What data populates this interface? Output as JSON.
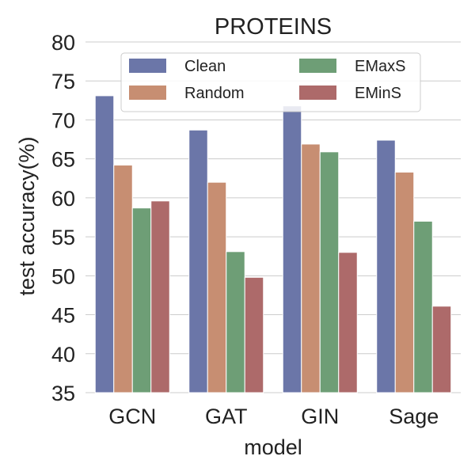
{
  "chart_data": {
    "type": "bar",
    "title": "PROTEINS",
    "xlabel": "model",
    "ylabel": "test accuracy(%)",
    "ylim": [
      35,
      80
    ],
    "yticks": [
      35,
      40,
      45,
      50,
      55,
      60,
      65,
      70,
      75,
      80
    ],
    "grid": "horizontal",
    "legend_position": "top-center",
    "categories": [
      "GCN",
      "GAT",
      "GIN",
      "Sage"
    ],
    "series": [
      {
        "name": "Clean",
        "color": "#6b76a8",
        "values": [
          73.1,
          68.7,
          71.8,
          67.4
        ]
      },
      {
        "name": "Random",
        "color": "#c78e72",
        "values": [
          64.2,
          62.0,
          66.9,
          63.3
        ]
      },
      {
        "name": "EMaxS",
        "color": "#6e9e76",
        "values": [
          58.7,
          53.1,
          65.9,
          57.0
        ]
      },
      {
        "name": "EMinS",
        "color": "#ad6a6a",
        "values": [
          59.6,
          49.8,
          53.0,
          46.1
        ]
      }
    ]
  }
}
